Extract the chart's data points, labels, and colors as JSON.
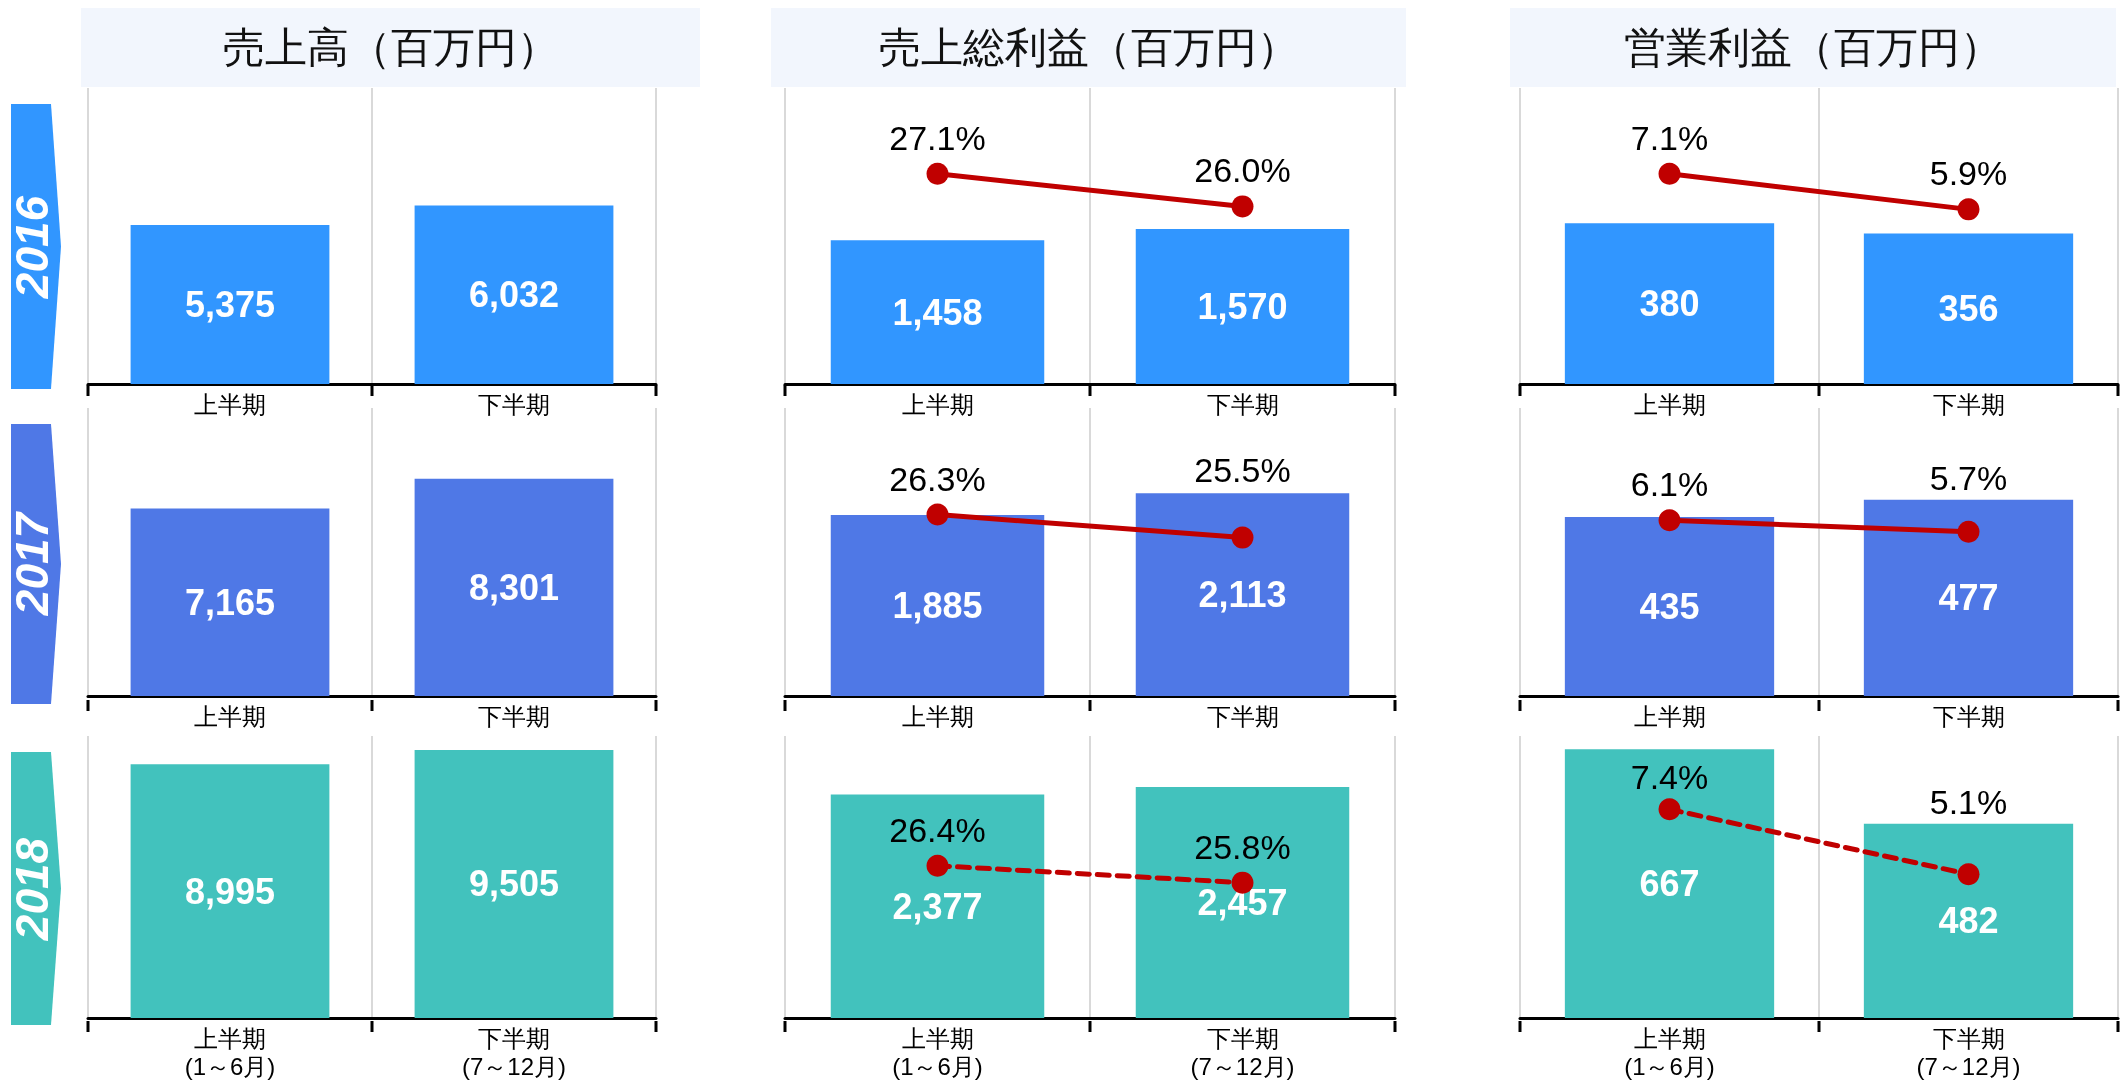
{
  "chart_data": [
    {
      "type": "bar",
      "title": "売上高（百万円）",
      "ylabel": "2016",
      "categories": [
        "上半期",
        "下半期"
      ],
      "series": [
        {
          "color": "#3196ff",
          "values": [
            5375,
            6032
          ],
          "value_labels": [
            "5,375",
            "6,032"
          ]
        }
      ],
      "ylim": [
        0,
        10000
      ],
      "grid": "x",
      "tick_labels": "x"
    },
    {
      "type": "bar",
      "title": "売上総利益（百万円）",
      "categories": [
        "上半期",
        "下半期"
      ],
      "series": [
        {
          "color": "#3196ff",
          "values": [
            1458,
            1570
          ],
          "value_labels": [
            "1,458",
            "1,570"
          ]
        },
        {
          "type": "line",
          "axis": "y2",
          "color": "#c00000",
          "values": [
            27.1,
            26.0
          ],
          "value_labels": [
            "27.1%",
            "26.0%"
          ]
        }
      ],
      "ylim": [
        0,
        3000
      ],
      "y2lim": [
        20,
        30
      ],
      "grid": "x",
      "tick_labels": "x",
      "marker": "circle",
      "line_style": "solid"
    },
    {
      "type": "bar",
      "title": "営業利益（百万円）",
      "categories": [
        "上半期",
        "下半期"
      ],
      "series": [
        {
          "color": "#3196ff",
          "values": [
            380,
            356
          ],
          "value_labels": [
            "380",
            "356"
          ]
        },
        {
          "type": "line",
          "axis": "y2",
          "color": "#c00000",
          "values": [
            7.1,
            5.9
          ],
          "value_labels": [
            "7.1%",
            "5.9%"
          ]
        }
      ],
      "ylim": [
        0,
        700
      ],
      "y2lim": [
        0,
        10
      ],
      "grid": "x",
      "tick_labels": "x",
      "marker": "circle",
      "line_style": "solid"
    },
    {
      "type": "bar",
      "ylabel": "2017",
      "categories": [
        "上半期",
        "下半期"
      ],
      "series": [
        {
          "color": "#4f78e6",
          "values": [
            7165,
            8301
          ],
          "value_labels": [
            "7,165",
            "8,301"
          ]
        }
      ],
      "ylim": [
        0,
        11000
      ],
      "grid": "x",
      "tick_labels": "x"
    },
    {
      "type": "bar",
      "categories": [
        "上半期",
        "下半期"
      ],
      "series": [
        {
          "color": "#4f78e6",
          "values": [
            1885,
            2113
          ],
          "value_labels": [
            "1,885",
            "2,113"
          ]
        },
        {
          "type": "line",
          "axis": "y2",
          "color": "#c00000",
          "values": [
            26.3,
            25.5
          ],
          "value_labels": [
            "26.3%",
            "25.5%"
          ]
        }
      ],
      "ylim": [
        0,
        3000
      ],
      "y2lim": [
        20,
        30
      ],
      "grid": "x",
      "tick_labels": "x",
      "marker": "circle",
      "line_style": "solid"
    },
    {
      "type": "bar",
      "categories": [
        "上半期",
        "下半期"
      ],
      "series": [
        {
          "color": "#4f78e6",
          "values": [
            435,
            477
          ],
          "value_labels": [
            "435",
            "477"
          ]
        },
        {
          "type": "line",
          "axis": "y2",
          "color": "#c00000",
          "values": [
            6.1,
            5.7
          ],
          "value_labels": [
            "6.1%",
            "5.7%"
          ]
        }
      ],
      "ylim": [
        0,
        700
      ],
      "y2lim": [
        0,
        10
      ],
      "grid": "x",
      "tick_labels": "x",
      "marker": "circle",
      "line_style": "solid"
    },
    {
      "type": "bar",
      "ylabel": "2018",
      "categories": [
        "上半期\n(1～6月)",
        "下半期\n(7～12月)"
      ],
      "series": [
        {
          "color": "#42c2bd",
          "values": [
            8995,
            9505
          ],
          "value_labels": [
            "8,995",
            "9,505"
          ]
        }
      ],
      "ylim": [
        0,
        10000
      ],
      "grid": "x",
      "tick_labels": "x"
    },
    {
      "type": "bar",
      "categories": [
        "上半期\n(1～6月)",
        "下半期\n(7～12月)"
      ],
      "series": [
        {
          "color": "#42c2bd",
          "values": [
            2377,
            2457
          ],
          "value_labels": [
            "2,377",
            "2,457"
          ]
        },
        {
          "type": "line",
          "axis": "y2",
          "color": "#c00000",
          "values": [
            26.4,
            25.8
          ],
          "value_labels": [
            "26.4%",
            "25.8%"
          ]
        }
      ],
      "ylim": [
        0,
        3000
      ],
      "y2lim": [
        21,
        31
      ],
      "grid": "x",
      "tick_labels": "x",
      "marker": "circle",
      "line_style": "dashed"
    },
    {
      "type": "bar",
      "categories": [
        "上半期\n(1～6月)",
        "下半期\n(7～12月)"
      ],
      "series": [
        {
          "color": "#42c2bd",
          "values": [
            667,
            482
          ],
          "value_labels": [
            "667",
            "482"
          ]
        },
        {
          "type": "line",
          "axis": "y2",
          "color": "#c00000",
          "values": [
            7.4,
            5.1
          ],
          "value_labels": [
            "7.4%",
            "5.1%"
          ]
        }
      ],
      "ylim": [
        0,
        700
      ],
      "y2lim": [
        0,
        10
      ],
      "grid": "x",
      "tick_labels": "x",
      "marker": "circle",
      "line_style": "dashed"
    }
  ]
}
